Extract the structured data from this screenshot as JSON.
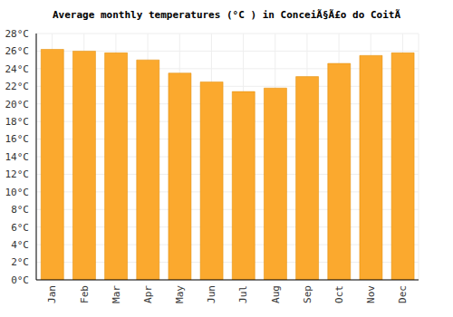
{
  "chart_data": {
    "type": "bar",
    "title": "Average monthly temperatures (°C ) in ConceiÃ§Ã£o do CoitÃ",
    "categories": [
      "Jan",
      "Feb",
      "Mar",
      "Apr",
      "May",
      "Jun",
      "Jul",
      "Aug",
      "Sep",
      "Oct",
      "Nov",
      "Dec"
    ],
    "values": [
      26.2,
      26.0,
      25.8,
      25.0,
      23.5,
      22.5,
      21.4,
      21.8,
      23.1,
      24.6,
      25.5,
      25.8
    ],
    "color": "#fba92e",
    "ylim": [
      0,
      28
    ],
    "yticks": [
      {
        "value": 0,
        "label": "0°C"
      },
      {
        "value": 2,
        "label": "2°C"
      },
      {
        "value": 4,
        "label": "4°C"
      },
      {
        "value": 6,
        "label": "6°C"
      },
      {
        "value": 8,
        "label": "8°C"
      },
      {
        "value": 10,
        "label": "10°C"
      },
      {
        "value": 12,
        "label": "12°C"
      },
      {
        "value": 14,
        "label": "14°C"
      },
      {
        "value": 16,
        "label": "16°C"
      },
      {
        "value": 18,
        "label": "18°C"
      },
      {
        "value": 20,
        "label": "20°C"
      },
      {
        "value": 22,
        "label": "22°C"
      },
      {
        "value": 24,
        "label": "24°C"
      },
      {
        "value": 26,
        "label": "26°C"
      },
      {
        "value": 28,
        "label": "28°C"
      }
    ],
    "grid": true
  }
}
